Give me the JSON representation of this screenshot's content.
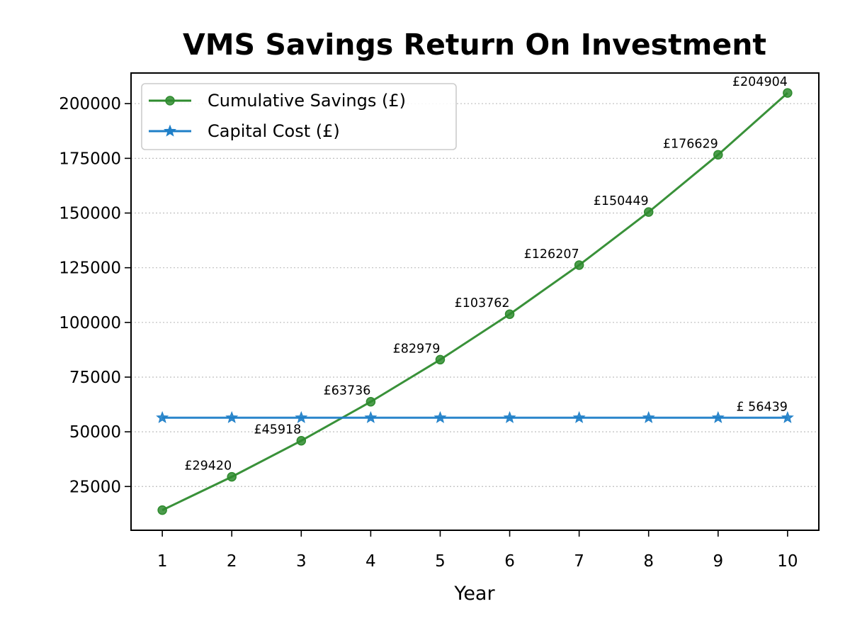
{
  "chart_data": {
    "type": "line",
    "title": "VMS Savings Return On Investment",
    "xlabel": "Year",
    "ylabel": "",
    "x": [
      1,
      2,
      3,
      4,
      5,
      6,
      7,
      8,
      9,
      10
    ],
    "xlim": [
      0.55,
      10.45
    ],
    "ylim": [
      5000,
      214000
    ],
    "yticks": [
      25000,
      50000,
      75000,
      100000,
      125000,
      150000,
      175000,
      200000
    ],
    "grid": "y-dotted",
    "legend_position": "top-left",
    "series": [
      {
        "name": "Cumulative Savings (£)",
        "values": [
          14200,
          29420,
          45918,
          63736,
          82979,
          103762,
          126207,
          150449,
          176629,
          204904
        ],
        "labels": [
          "",
          "£29420",
          "£45918",
          "£63736",
          "£82979",
          "£103762",
          "£126207",
          "£150449",
          "£176629",
          "£204904"
        ],
        "color": "#2e8b2e",
        "marker": "circle"
      },
      {
        "name": "Capital Cost (£)",
        "values": [
          56439,
          56439,
          56439,
          56439,
          56439,
          56439,
          56439,
          56439,
          56439,
          56439
        ],
        "labels": [
          "",
          "",
          "",
          "",
          "",
          "",
          "",
          "",
          "",
          "£ 56439"
        ],
        "color": "#1f7fc8",
        "marker": "star"
      }
    ]
  }
}
